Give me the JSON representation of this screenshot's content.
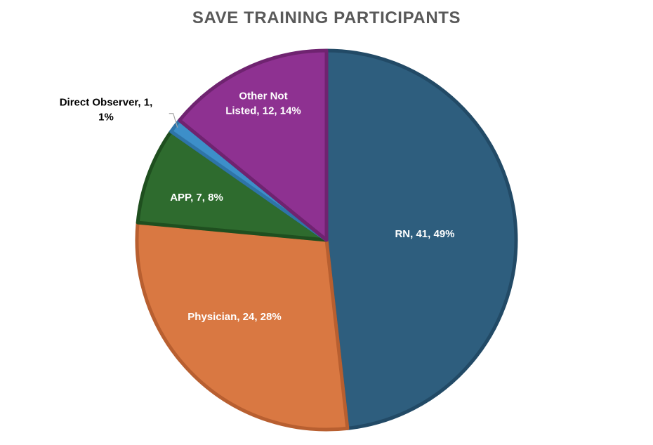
{
  "chart_data": {
    "type": "pie",
    "title": "SAVE TRAINING PARTICIPANTS",
    "slices": [
      {
        "label": "RN",
        "value": 41,
        "percent": "49%",
        "color": "#2E5E7E",
        "border": "#224A66",
        "label_color": "#ffffff"
      },
      {
        "label": "Physician",
        "value": 24,
        "percent": "28%",
        "color": "#D97842",
        "border": "#B85F30",
        "label_color": "#ffffff"
      },
      {
        "label": "APP",
        "value": 7,
        "percent": "8%",
        "color": "#2E6B2E",
        "border": "#1F4F1F",
        "label_color": "#ffffff"
      },
      {
        "label": "Direct Observer",
        "value": 1,
        "percent": "1%",
        "color": "#3D8FC9",
        "border": "#2E74A8",
        "label_color": "#000000"
      },
      {
        "label": "Other Not Listed",
        "value": 12,
        "percent": "14%",
        "color": "#8E3191",
        "border": "#6F2370",
        "label_color": "#ffffff"
      }
    ],
    "legend": "none"
  }
}
